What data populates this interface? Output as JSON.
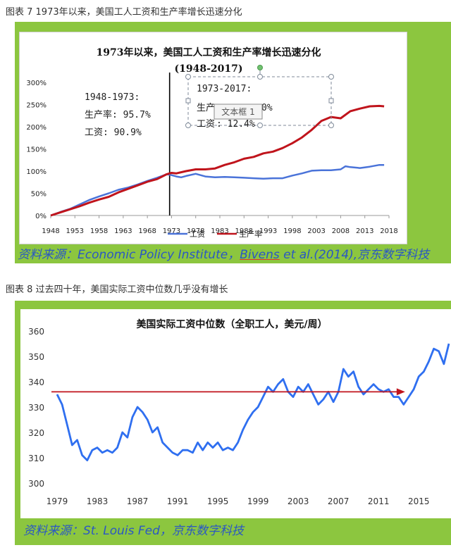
{
  "captions": {
    "fig7": "图表 7 1973年以来，美国工人工资和生产率增长迅速分化",
    "fig8": "图表 8 过去四十年，美国实际工资中位数几乎没有增长"
  },
  "sources": {
    "fig7_prefix": "资料来源：Economic Policy Institute，",
    "fig7_author": "Bivens",
    "fig7_suffix": " et al.(2014),京东数字科技",
    "fig8": "资料来源：St. Louis Fed，京东数字科技"
  },
  "colors": {
    "panel": "#8cc63f",
    "wage": "#4a73d9",
    "productivity": "#c0141c",
    "wage2": "#2f6ff0",
    "arrow": "#c0141c",
    "source_text": "#2a57c4"
  },
  "chart_data": [
    {
      "type": "line",
      "title": "1973年以来，美国工人工资和生产率增长迅速分化",
      "subtitle": "(1948-2017)",
      "ylim": [
        0,
        300
      ],
      "xlim": [
        1948,
        2018
      ],
      "yticks": [
        0,
        50,
        100,
        150,
        200,
        250,
        300
      ],
      "ytick_labels": [
        "0%",
        "50%",
        "100%",
        "150%",
        "200%",
        "250%",
        "300%"
      ],
      "xticks": [
        1948,
        1953,
        1958,
        1963,
        1968,
        1973,
        1978,
        1983,
        1988,
        1993,
        1998,
        2003,
        2008,
        2013,
        2018
      ],
      "xtick_labels": [
        "1948",
        "1953",
        "1958",
        "1963",
        "1968",
        "1973",
        "1978",
        "1983",
        "1988",
        "1993",
        "1998",
        "2003",
        "2008",
        "2013",
        "2018"
      ],
      "divider_x": 1972.6,
      "legend": [
        "工资",
        "生产率"
      ],
      "annotations": {
        "left_period": "1948-1973:",
        "left_prod": "生产率: 95.7%",
        "left_wage": "工资: 90.9%",
        "right_period": "1973-2017:",
        "right_prod_prefix": "生产",
        "right_prod_value": "0%",
        "right_wage_prefix": "工资",
        "right_wage_value": ": 12.4%",
        "tooltip": "文本框 1"
      },
      "series": [
        {
          "name": "工资",
          "x": [
            1948,
            1950,
            1952,
            1954,
            1956,
            1958,
            1960,
            1962,
            1964,
            1966,
            1968,
            1970,
            1972,
            1973,
            1974,
            1975,
            1976,
            1978,
            1980,
            1982,
            1984,
            1986,
            1988,
            1990,
            1992,
            1994,
            1996,
            1998,
            2000,
            2002,
            2004,
            2006,
            2008,
            2009,
            2010,
            2012,
            2014,
            2016,
            2017
          ],
          "values": [
            0,
            8,
            15,
            25,
            35,
            43,
            50,
            58,
            63,
            70,
            78,
            85,
            93,
            91,
            88,
            86,
            89,
            94,
            88,
            86,
            87,
            86,
            85,
            84,
            83,
            84,
            84,
            90,
            95,
            101,
            102,
            102,
            104,
            111,
            109,
            107,
            110,
            114,
            114
          ]
        },
        {
          "name": "生产率",
          "x": [
            1948,
            1950,
            1952,
            1954,
            1956,
            1958,
            1960,
            1962,
            1964,
            1966,
            1968,
            1970,
            1972,
            1973,
            1974,
            1976,
            1978,
            1980,
            1982,
            1984,
            1986,
            1988,
            1990,
            1992,
            1994,
            1996,
            1998,
            2000,
            2002,
            2004,
            2006,
            2008,
            2010,
            2012,
            2014,
            2016,
            2017
          ],
          "values": [
            0,
            7,
            14,
            21,
            29,
            36,
            42,
            52,
            60,
            68,
            76,
            82,
            93,
            96,
            95,
            100,
            104,
            104,
            106,
            114,
            120,
            128,
            132,
            140,
            144,
            152,
            163,
            176,
            193,
            213,
            222,
            219,
            235,
            241,
            246,
            247,
            246
          ]
        }
      ]
    },
    {
      "type": "line",
      "title": "美国实际工资中位数（全职工人，美元/周）",
      "ylim": [
        300,
        360
      ],
      "xlim": [
        1979,
        2018
      ],
      "yticks": [
        300,
        310,
        320,
        330,
        340,
        350,
        360
      ],
      "ytick_labels": [
        "300",
        "310",
        "320",
        "330",
        "340",
        "350",
        "360"
      ],
      "xticks": [
        1979,
        1983,
        1987,
        1991,
        1995,
        1999,
        2003,
        2007,
        2011,
        2015
      ],
      "xtick_labels": [
        "1979",
        "1983",
        "1987",
        "1991",
        "1995",
        "1999",
        "2003",
        "2007",
        "2011",
        "2015"
      ],
      "reference_value": 336,
      "reference_range": [
        1979,
        2013.5
      ],
      "series": [
        {
          "name": "实际工资中位数",
          "x": [
            1979,
            1979.5,
            1980,
            1980.5,
            1981,
            1981.5,
            1982,
            1982.5,
            1983,
            1983.5,
            1984,
            1984.5,
            1985,
            1985.5,
            1986,
            1986.5,
            1987,
            1987.5,
            1988,
            1988.5,
            1989,
            1989.5,
            1990,
            1990.5,
            1991,
            1991.5,
            1992,
            1992.5,
            1993,
            1993.5,
            1994,
            1994.5,
            1995,
            1995.5,
            1996,
            1996.5,
            1997,
            1997.5,
            1998,
            1998.5,
            1999,
            1999.5,
            2000,
            2000.5,
            2001,
            2001.5,
            2002,
            2002.5,
            2003,
            2003.5,
            2004,
            2004.5,
            2005,
            2005.5,
            2006,
            2006.5,
            2007,
            2007.5,
            2008,
            2008.5,
            2009,
            2009.5,
            2010,
            2010.5,
            2011,
            2011.5,
            2012,
            2012.5,
            2013,
            2013.5,
            2014,
            2014.5,
            2015,
            2015.5,
            2016,
            2016.5,
            2017,
            2017.5,
            2018
          ],
          "values": [
            335,
            331,
            323,
            315,
            317,
            311,
            309,
            313,
            314,
            312,
            313,
            312,
            314,
            320,
            318,
            326,
            330,
            328,
            325,
            320,
            322,
            316,
            314,
            312,
            311,
            313,
            313,
            312,
            316,
            313,
            316,
            314,
            316,
            313,
            314,
            313,
            316,
            321,
            325,
            328,
            330,
            334,
            338,
            336,
            339,
            341,
            336,
            334,
            338,
            336,
            339,
            335,
            331,
            333,
            336,
            332,
            336,
            345,
            342,
            344,
            338,
            335,
            337,
            339,
            337,
            336,
            337,
            334,
            334,
            331,
            334,
            337,
            342,
            344,
            348,
            353,
            352,
            347,
            355
          ]
        }
      ]
    }
  ]
}
